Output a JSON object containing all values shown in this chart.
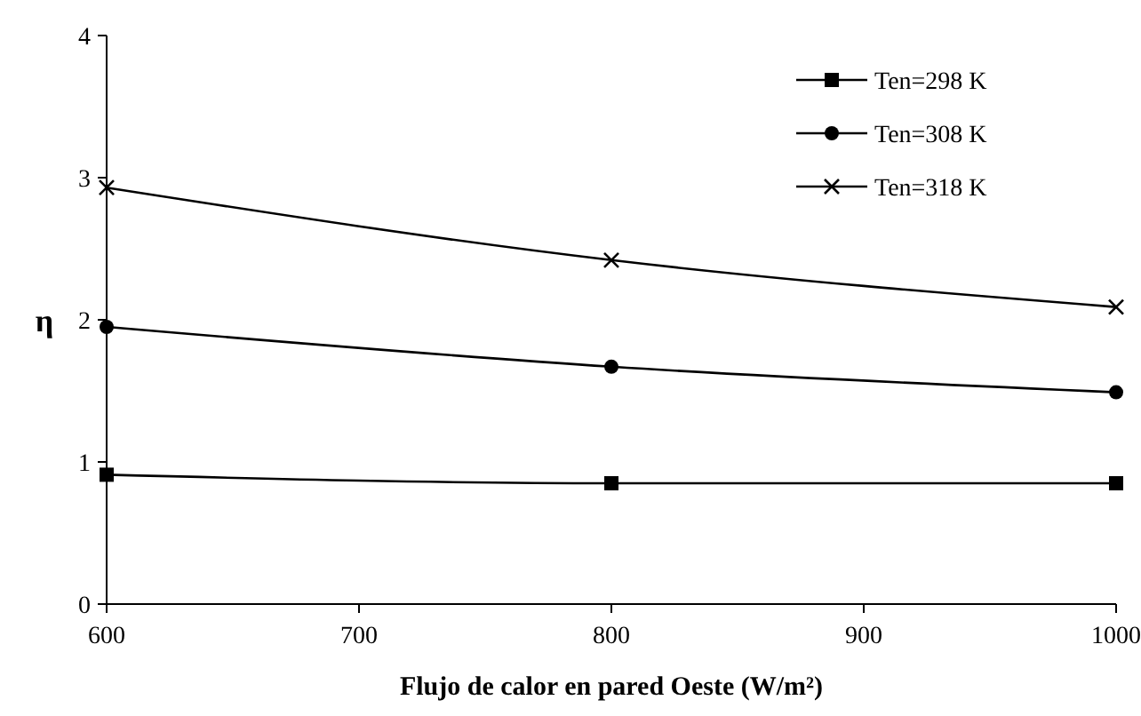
{
  "chart_data": {
    "type": "line",
    "xlabel": "Flujo de calor en pared Oeste (W/m²)",
    "ylabel": "η",
    "x": [
      600,
      800,
      1000
    ],
    "xlim": [
      600,
      1000
    ],
    "xticks": [
      600,
      700,
      800,
      900,
      1000
    ],
    "ylim": [
      0,
      4
    ],
    "yticks": [
      0,
      1,
      2,
      3,
      4
    ],
    "grid": false,
    "legend": "top right",
    "line_style": "solid",
    "series": [
      {
        "name": "Ten=298 K",
        "color": "#000000",
        "marker": "square",
        "values": [
          0.91,
          0.85,
          0.85
        ]
      },
      {
        "name": "Ten=308 K",
        "color": "#000000",
        "marker": "circle",
        "values": [
          1.95,
          1.67,
          1.49
        ]
      },
      {
        "name": "Ten=318 K",
        "color": "#000000",
        "marker": "cross",
        "values": [
          2.93,
          2.42,
          2.09
        ]
      }
    ]
  }
}
